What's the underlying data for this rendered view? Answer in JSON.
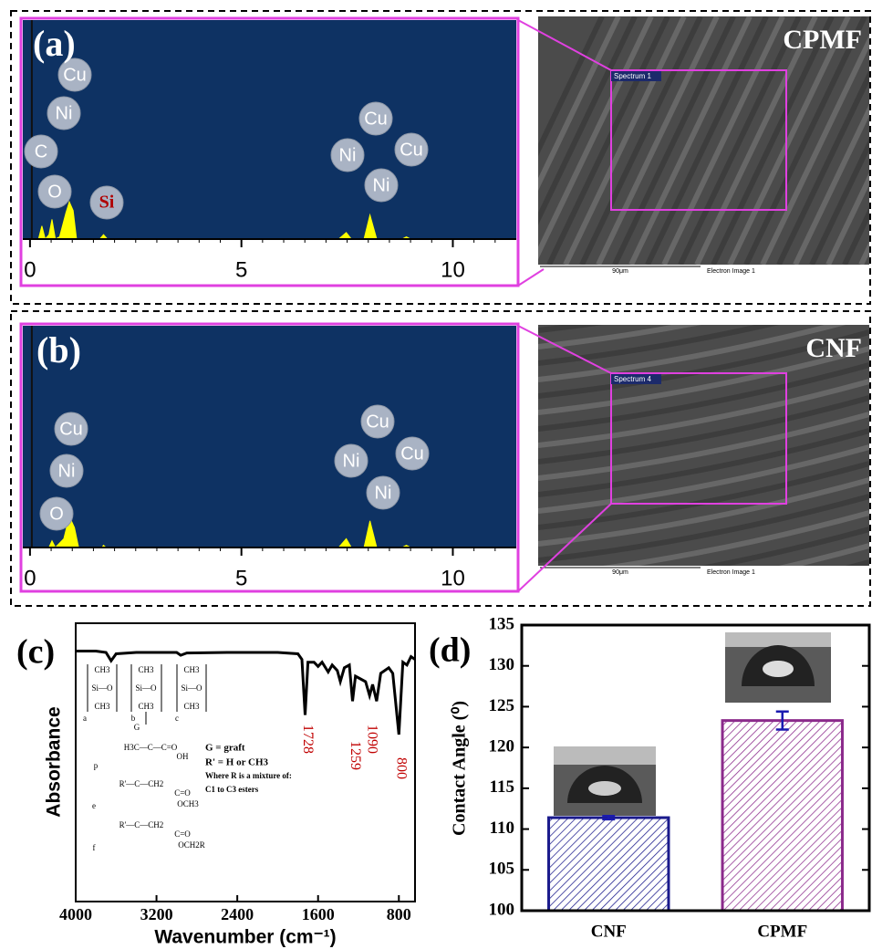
{
  "chart_data": [
    {
      "type": "spectrum",
      "panel_label": "(a)",
      "x": [
        -0.1,
        0.2,
        0.28,
        0.36,
        0.45,
        0.52,
        0.6,
        0.7,
        0.85,
        0.93,
        1.02,
        1.1,
        1.3,
        1.65,
        1.74,
        1.83,
        2.2,
        7.3,
        7.48,
        7.6,
        7.9,
        8.04,
        8.2,
        8.8,
        8.9,
        9.0,
        11.3
      ],
      "values": [
        0,
        0,
        6,
        0,
        2,
        9,
        0,
        1,
        12,
        17,
        13,
        0,
        0,
        0,
        2,
        0,
        0,
        0,
        3,
        0,
        0,
        11,
        0,
        0,
        1,
        0,
        0
      ],
      "color": "#ffff00",
      "xlim": [
        -0.17,
        11.5
      ],
      "xticks": [
        0,
        5,
        10
      ],
      "ylim": [
        0,
        100
      ],
      "peak_labels": [
        "Cu",
        "Ni",
        "C",
        "O",
        "Si",
        "Cu",
        "Ni",
        "Cu",
        "Ni"
      ],
      "image": {
        "label": "CPMF",
        "spectrum": "Spectrum 1",
        "scale": "90μm",
        "caption": "Electron Image 1"
      }
    },
    {
      "type": "spectrum",
      "panel_label": "(b)",
      "x": [
        -0.1,
        0.3,
        0.45,
        0.52,
        0.6,
        0.8,
        0.93,
        1.05,
        1.15,
        1.7,
        1.74,
        1.8,
        7.3,
        7.48,
        7.6,
        7.9,
        8.04,
        8.2,
        8.8,
        8.9,
        9.0,
        11.3
      ],
      "values": [
        0,
        0,
        0,
        3,
        0,
        4,
        14,
        9,
        0,
        0,
        1,
        0,
        0,
        4,
        0,
        0,
        12,
        0,
        0,
        1,
        0,
        0
      ],
      "color": "#ffff00",
      "xlim": [
        -0.17,
        11.5
      ],
      "xticks": [
        0,
        5,
        10
      ],
      "ylim": [
        0,
        100
      ],
      "peak_labels": [
        "Cu",
        "Ni",
        "O",
        "Cu",
        "Ni",
        "Cu",
        "Ni"
      ],
      "image": {
        "label": "CNF",
        "spectrum": "Spectrum 4",
        "scale": "90μm",
        "caption": "Electron Image 1"
      }
    },
    {
      "type": "line",
      "panel_label": "(c)",
      "x": [
        4000,
        3800,
        3700,
        3650,
        3600,
        3400,
        3000,
        2960,
        2900,
        2500,
        2000,
        1800,
        1760,
        1728,
        1700,
        1640,
        1600,
        1560,
        1500,
        1460,
        1410,
        1380,
        1340,
        1290,
        1259,
        1230,
        1180,
        1130,
        1090,
        1060,
        1020,
        980,
        900,
        860,
        800,
        760,
        720,
        680,
        640
      ],
      "values": [
        90,
        90,
        89.5,
        86.5,
        89,
        89.5,
        89.5,
        88.5,
        89.3,
        89.5,
        89.5,
        89,
        87,
        67,
        86,
        86,
        84.5,
        86,
        82.5,
        85,
        83,
        79,
        84,
        85,
        72,
        81,
        80,
        79,
        74,
        78,
        72,
        82,
        84,
        82,
        60,
        86,
        85,
        88,
        87
      ],
      "color": "#000000",
      "xlim": [
        4000,
        640
      ],
      "xticks": [
        4000,
        3200,
        2400,
        1600,
        800
      ],
      "ylim": [
        0,
        100
      ],
      "xlabel": "Wavenumber (cm⁻¹)",
      "ylabel": "Absorbance",
      "peak_labels": [
        1728,
        1259,
        1090,
        800
      ],
      "peak_label_color": "#c00000",
      "structure": [
        "CH3",
        "Si—O",
        "CH3",
        "a",
        "CH3",
        "Si—O",
        "CH3",
        "b",
        "CH3",
        "Si—O",
        "CH3",
        "c",
        "G",
        "H3C—C—C=O",
        "OH",
        "p",
        "R'—C—CH2",
        "C=O",
        "OCH3",
        "e",
        "R'—C—CH2",
        "C=O",
        "OCH2R",
        "f",
        "G = graft",
        "R' = H or CH3",
        "Where R is a mixture of:",
        "C1 to C3 esters"
      ]
    },
    {
      "type": "bar",
      "panel_label": "(d)",
      "categories": [
        "CNF",
        "CPMF"
      ],
      "values": [
        111.4,
        123.3
      ],
      "errors": [
        0.2,
        1.1
      ],
      "colors": [
        "#1a1a8c",
        "#8b2a8b"
      ],
      "ylim": [
        100,
        135
      ],
      "yticks": [
        100,
        105,
        110,
        115,
        120,
        125,
        130,
        135
      ],
      "ylabel": "Contact Angle (⁰)"
    }
  ]
}
